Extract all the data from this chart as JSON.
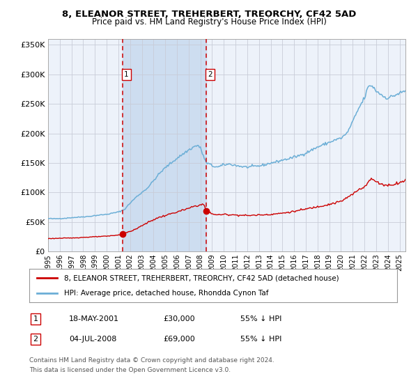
{
  "title": "8, ELEANOR STREET, TREHERBERT, TREORCHY, CF42 5AD",
  "subtitle": "Price paid vs. HM Land Registry's House Price Index (HPI)",
  "legend_line1": "8, ELEANOR STREET, TREHERBERT, TREORCHY, CF42 5AD (detached house)",
  "legend_line2": "HPI: Average price, detached house, Rhondda Cynon Taf",
  "annotation1_date": "18-MAY-2001",
  "annotation1_price": "£30,000",
  "annotation1_pct": "55% ↓ HPI",
  "annotation2_date": "04-JUL-2008",
  "annotation2_price": "£69,000",
  "annotation2_pct": "55% ↓ HPI",
  "footer_line1": "Contains HM Land Registry data © Crown copyright and database right 2024.",
  "footer_line2": "This data is licensed under the Open Government Licence v3.0.",
  "hpi_color": "#6baed6",
  "price_color": "#cc0000",
  "background_color": "#ffffff",
  "plot_bg_color": "#edf2fa",
  "shade_color": "#cdddf0",
  "grid_color": "#c8ccd8",
  "ylim": [
    0,
    360000
  ],
  "yticks": [
    0,
    50000,
    100000,
    150000,
    200000,
    250000,
    300000,
    350000
  ],
  "sale1_x": 2001.38,
  "sale1_y": 30000,
  "sale2_x": 2008.5,
  "sale2_y": 69000,
  "xmin": 1995.0,
  "xmax": 2025.5
}
